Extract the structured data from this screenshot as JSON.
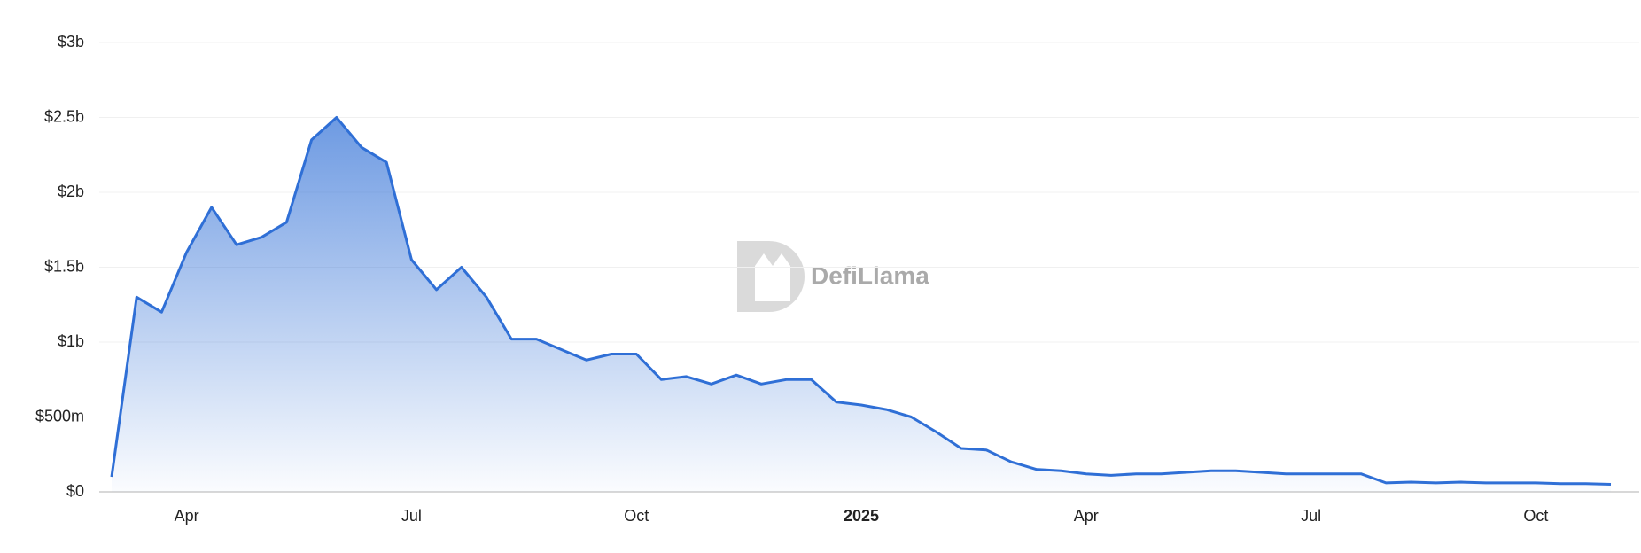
{
  "chart_data": {
    "type": "area",
    "watermark": "DefiLlama",
    "color": "#2f6fd6",
    "categories": [
      null,
      null,
      null,
      "Apr",
      null,
      null,
      null,
      null,
      null,
      null,
      null,
      null,
      "Jul",
      null,
      null,
      null,
      null,
      null,
      null,
      null,
      null,
      "Oct",
      null,
      null,
      null,
      null,
      null,
      null,
      null,
      null,
      "2025",
      null,
      null,
      null,
      null,
      null,
      null,
      null,
      null,
      "Apr",
      null,
      null,
      null,
      null,
      null,
      null,
      null,
      null,
      "Jul",
      null,
      null,
      null,
      null,
      null,
      null,
      null,
      null,
      "Oct",
      null,
      null,
      null
    ],
    "values": [
      0.1,
      1.3,
      1.2,
      1.6,
      1.9,
      1.65,
      1.7,
      1.8,
      2.35,
      2.5,
      2.3,
      2.2,
      1.55,
      1.35,
      1.5,
      1.3,
      1.02,
      1.02,
      0.95,
      0.88,
      0.92,
      0.92,
      0.75,
      0.77,
      0.72,
      0.78,
      0.72,
      0.75,
      0.75,
      0.6,
      0.58,
      0.55,
      0.5,
      0.4,
      0.29,
      0.28,
      0.2,
      0.15,
      0.14,
      0.12,
      0.11,
      0.12,
      0.12,
      0.13,
      0.14,
      0.14,
      0.13,
      0.12,
      0.12,
      0.12,
      0.12,
      0.06,
      0.065,
      0.06,
      0.065,
      0.06,
      0.06,
      0.06,
      0.055,
      0.055,
      0.05
    ],
    "ylim": [
      0,
      3
    ],
    "yticks": [
      {
        "value": 0,
        "label": "$0"
      },
      {
        "value": 0.5,
        "label": "$500m"
      },
      {
        "value": 1,
        "label": "$1b"
      },
      {
        "value": 1.5,
        "label": "$1.5b"
      },
      {
        "value": 2,
        "label": "$2b"
      },
      {
        "value": 2.5,
        "label": "$2.5b"
      },
      {
        "value": 3,
        "label": "$3b"
      }
    ],
    "grid": true
  }
}
